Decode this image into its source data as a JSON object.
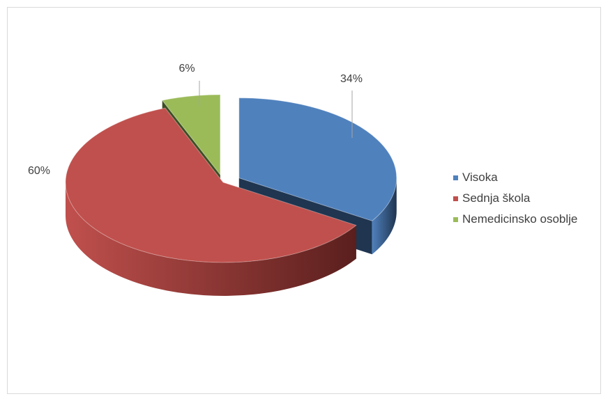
{
  "chart_data": {
    "type": "pie",
    "style": "3d-exploded",
    "categories": [
      "Visoka",
      "Sednja škola",
      "Nemedicinsko osoblje"
    ],
    "values": [
      34,
      60,
      6
    ],
    "labels": [
      "34%",
      "60%",
      "6%"
    ],
    "colors": [
      "#4f81bd",
      "#c0504d",
      "#9bbb59"
    ],
    "side_colors": [
      "#1f3550",
      "#5a1f1d",
      "#3d4d22"
    ],
    "legend_position": "right"
  }
}
